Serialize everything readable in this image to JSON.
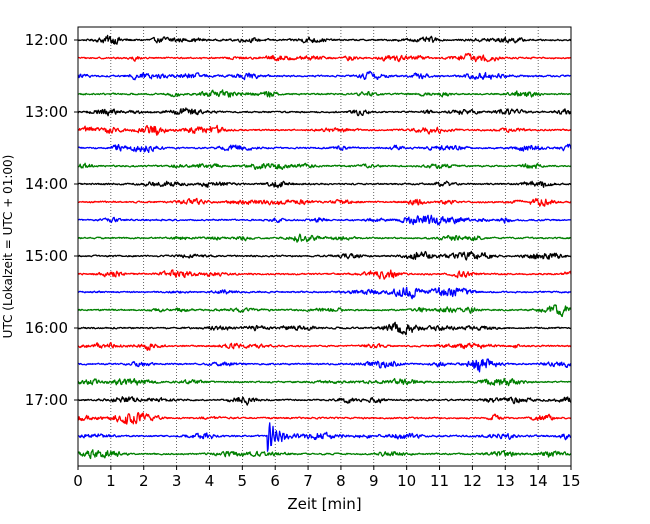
{
  "chart_data": {
    "type": "line",
    "title": "",
    "xlabel": "Zeit  [min]",
    "ylabel": "UTC (Lokalzeit = UTC + 01:00)",
    "xlim": [
      0,
      15
    ],
    "x_ticks": [
      0,
      1,
      2,
      3,
      4,
      5,
      6,
      7,
      8,
      9,
      10,
      11,
      12,
      13,
      14,
      15
    ],
    "hour_labels": [
      "12:00",
      "13:00",
      "14:00",
      "15:00",
      "16:00",
      "17:00"
    ],
    "traces_per_hour": 4,
    "trace_minutes": 15,
    "grid": "vertical dotted",
    "legend": "none",
    "colors": [
      "#000000",
      "#ff0000",
      "#0000ff",
      "#008000"
    ],
    "traces": [
      {
        "start": "12:00",
        "color": "#000000"
      },
      {
        "start": "12:15",
        "color": "#ff0000"
      },
      {
        "start": "12:30",
        "color": "#0000ff"
      },
      {
        "start": "12:45",
        "color": "#008000"
      },
      {
        "start": "13:00",
        "color": "#000000"
      },
      {
        "start": "13:15",
        "color": "#ff0000"
      },
      {
        "start": "13:30",
        "color": "#0000ff"
      },
      {
        "start": "13:45",
        "color": "#008000"
      },
      {
        "start": "14:00",
        "color": "#000000"
      },
      {
        "start": "14:15",
        "color": "#ff0000"
      },
      {
        "start": "14:30",
        "color": "#0000ff"
      },
      {
        "start": "14:45",
        "color": "#008000"
      },
      {
        "start": "15:00",
        "color": "#000000"
      },
      {
        "start": "15:15",
        "color": "#ff0000"
      },
      {
        "start": "15:30",
        "color": "#0000ff"
      },
      {
        "start": "15:45",
        "color": "#008000"
      },
      {
        "start": "16:00",
        "color": "#000000"
      },
      {
        "start": "16:15",
        "color": "#ff0000"
      },
      {
        "start": "16:30",
        "color": "#0000ff"
      },
      {
        "start": "16:45",
        "color": "#008000"
      },
      {
        "start": "17:00",
        "color": "#000000"
      },
      {
        "start": "17:15",
        "color": "#ff0000"
      },
      {
        "start": "17:30",
        "color": "#0000ff"
      },
      {
        "start": "17:45",
        "color": "#008000"
      }
    ],
    "events": [
      {
        "trace": "17:30",
        "onset_min": 5.75,
        "note": "distinct event with large spikes near 5.8–6.1 min and coda to ~10 min"
      }
    ]
  }
}
